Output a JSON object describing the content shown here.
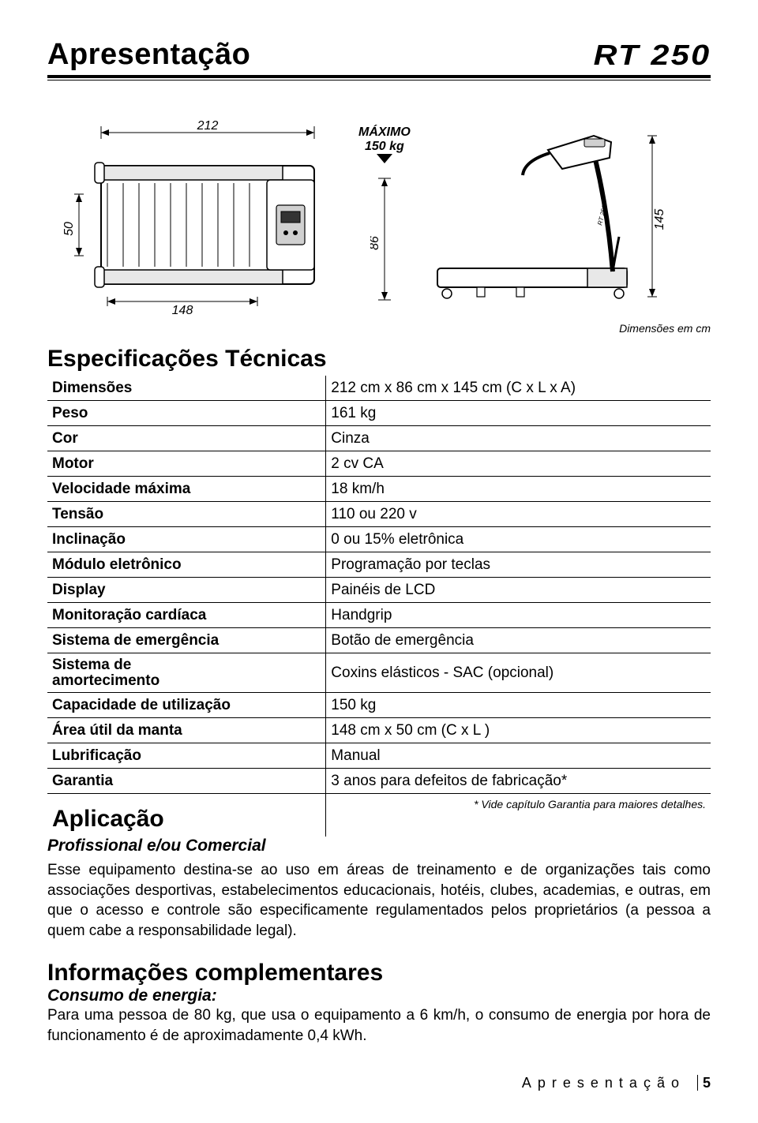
{
  "header": {
    "title": "Apresentação",
    "model": "RT 250"
  },
  "diagram": {
    "top_length": "212",
    "inner_width": "50",
    "belt_length": "148",
    "width": "86",
    "height": "145",
    "max_label": "MÁXIMO",
    "max_weight": "150 kg",
    "caption": "Dimensões em cm"
  },
  "specs": {
    "title": "Especificações Técnicas",
    "rows": [
      {
        "label": "Dimensões",
        "value": "212 cm x 86 cm x 145 cm (C x L x A)"
      },
      {
        "label": "Peso",
        "value": "161 kg"
      },
      {
        "label": "Cor",
        "value": "Cinza"
      },
      {
        "label": "Motor",
        "value": "2 cv CA"
      },
      {
        "label": "Velocidade máxima",
        "value": "18 km/h"
      },
      {
        "label": "Tensão",
        "value": "110 ou 220 v"
      },
      {
        "label": "Inclinação",
        "value": "0 ou 15% eletrônica"
      },
      {
        "label": "Módulo eletrônico",
        "value": "Programação por teclas"
      },
      {
        "label": "Display",
        "value": "Painéis de LCD"
      },
      {
        "label": "Monitoração cardíaca",
        "value": "Handgrip"
      },
      {
        "label": "Sistema de emergência",
        "value": "Botão de emergência"
      },
      {
        "label": "Sistema de\namortecimento",
        "value": "Coxins elásticos - SAC (opcional)"
      },
      {
        "label": "Capacidade de utilização",
        "value": "150 kg"
      },
      {
        "label": "Área útil da manta",
        "value": "148 cm x 50 cm (C x L )"
      },
      {
        "label": "Lubrificação",
        "value": "Manual"
      },
      {
        "label": "Garantia",
        "value": "3 anos para defeitos de fabricação*"
      }
    ]
  },
  "application": {
    "title": "Aplicação",
    "footnote": "* Vide capítulo Garantia para maiores detalhes.",
    "subtitle": "Profissional e/ou Comercial",
    "body": "Esse equipamento destina-se ao uso em áreas de treinamento e de organizações tais como associações desportivas, estabelecimentos educacionais, hotéis, clubes, academias, e outras, em que o acesso e controle são especificamente regulamentados pelos proprietários (a pessoa a quem cabe a responsabilidade legal)."
  },
  "info": {
    "title": "Informações complementares",
    "subtitle": "Consumo de energia:",
    "body": "Para uma pessoa de 80 kg, que usa o equipamento a 6 km/h, o consumo de energia por hora de funcionamento é de aproximadamente  0,4 kWh."
  },
  "footer": {
    "text": "Apresentação",
    "page": "5"
  },
  "colors": {
    "text": "#000000",
    "bg": "#ffffff",
    "rule": "#000000"
  }
}
